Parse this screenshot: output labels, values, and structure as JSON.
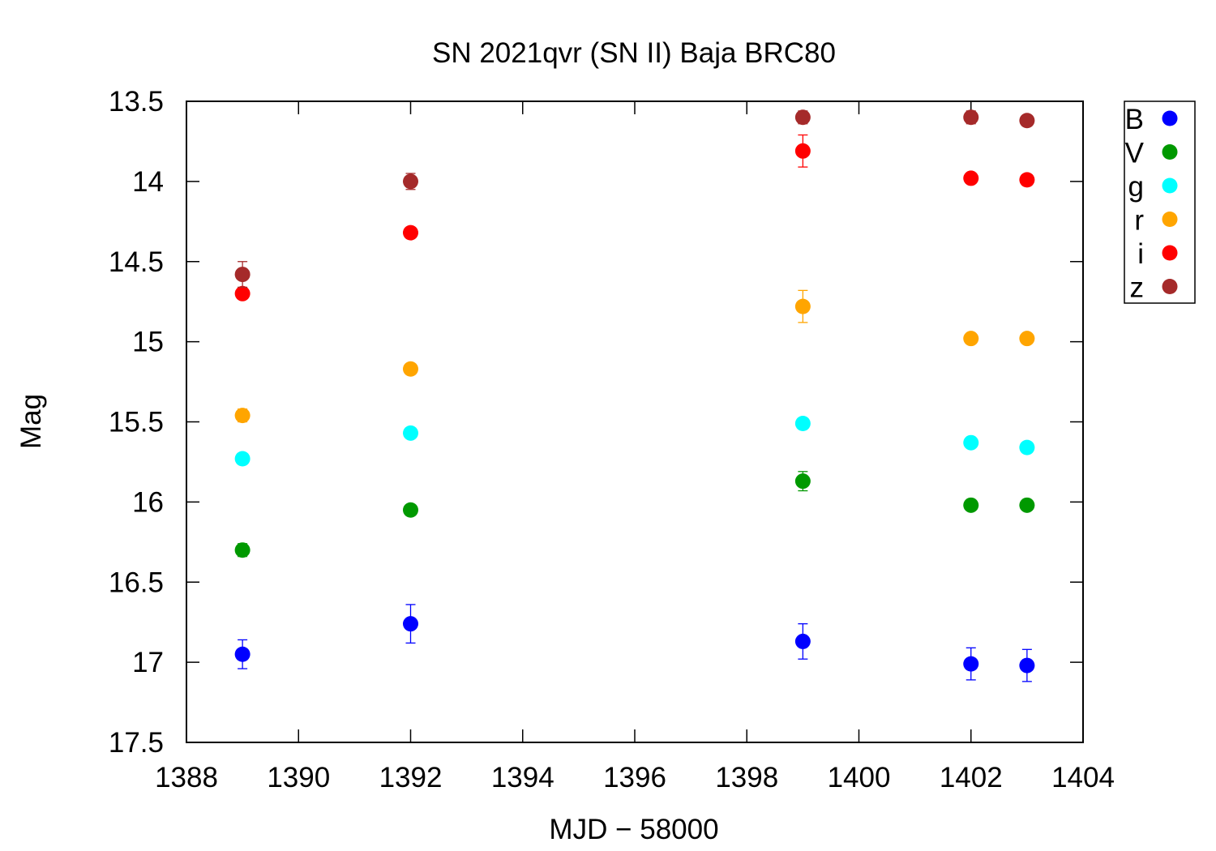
{
  "chart_data": {
    "type": "scatter",
    "title": "SN 2021qvr (SN II) Baja BRC80",
    "xlabel": "MJD − 58000",
    "ylabel": "Mag",
    "xlim": [
      1388,
      1404
    ],
    "ylim": [
      17.5,
      13.5
    ],
    "y_inverted": true,
    "x_ticks": [
      "1388",
      "1390",
      "1392",
      "1394",
      "1396",
      "1398",
      "1400",
      "1402",
      "1404"
    ],
    "y_ticks": [
      "13.5",
      "14",
      "14.5",
      "15",
      "15.5",
      "16",
      "16.5",
      "17",
      "17.5"
    ],
    "legend_position": "outside-top-right",
    "grid": false,
    "series": [
      {
        "name": "B",
        "color": "#0000ff",
        "points": [
          [
            1389.0,
            16.95,
            0.09
          ],
          [
            1392.0,
            16.76,
            0.12
          ],
          [
            1399.0,
            16.87,
            0.11
          ],
          [
            1402.0,
            17.01,
            0.1
          ],
          [
            1403.0,
            17.02,
            0.1
          ]
        ]
      },
      {
        "name": "V",
        "color": "#009900",
        "points": [
          [
            1389.0,
            16.3,
            0.04
          ],
          [
            1392.0,
            16.05,
            0.02
          ],
          [
            1399.0,
            15.87,
            0.06
          ],
          [
            1402.0,
            16.02,
            0.02
          ],
          [
            1403.0,
            16.02,
            0.02
          ]
        ]
      },
      {
        "name": "g",
        "color": "#00ffff",
        "points": [
          [
            1389.0,
            15.73,
            0.02
          ],
          [
            1392.0,
            15.57,
            0.02
          ],
          [
            1399.0,
            15.51,
            0.02
          ],
          [
            1402.0,
            15.63,
            0.02
          ],
          [
            1403.0,
            15.66,
            0.02
          ]
        ]
      },
      {
        "name": "r",
        "color": "#ffa500",
        "points": [
          [
            1389.0,
            15.46,
            0.04
          ],
          [
            1392.0,
            15.17,
            0.02
          ],
          [
            1399.0,
            14.78,
            0.1
          ],
          [
            1402.0,
            14.98,
            0.02
          ],
          [
            1403.0,
            14.98,
            0.02
          ]
        ]
      },
      {
        "name": "i",
        "color": "#ff0000",
        "points": [
          [
            1389.0,
            14.7,
            0.03
          ],
          [
            1392.0,
            14.32,
            0.02
          ],
          [
            1399.0,
            13.81,
            0.1
          ],
          [
            1402.0,
            13.98,
            0.02
          ],
          [
            1403.0,
            13.99,
            0.02
          ]
        ]
      },
      {
        "name": "z",
        "color": "#a52a2a",
        "points": [
          [
            1389.0,
            14.58,
            0.08
          ],
          [
            1392.0,
            14.0,
            0.05
          ],
          [
            1399.0,
            13.6,
            0.04
          ],
          [
            1402.0,
            13.6,
            0.04
          ],
          [
            1403.0,
            13.62,
            0.02
          ]
        ]
      }
    ]
  }
}
